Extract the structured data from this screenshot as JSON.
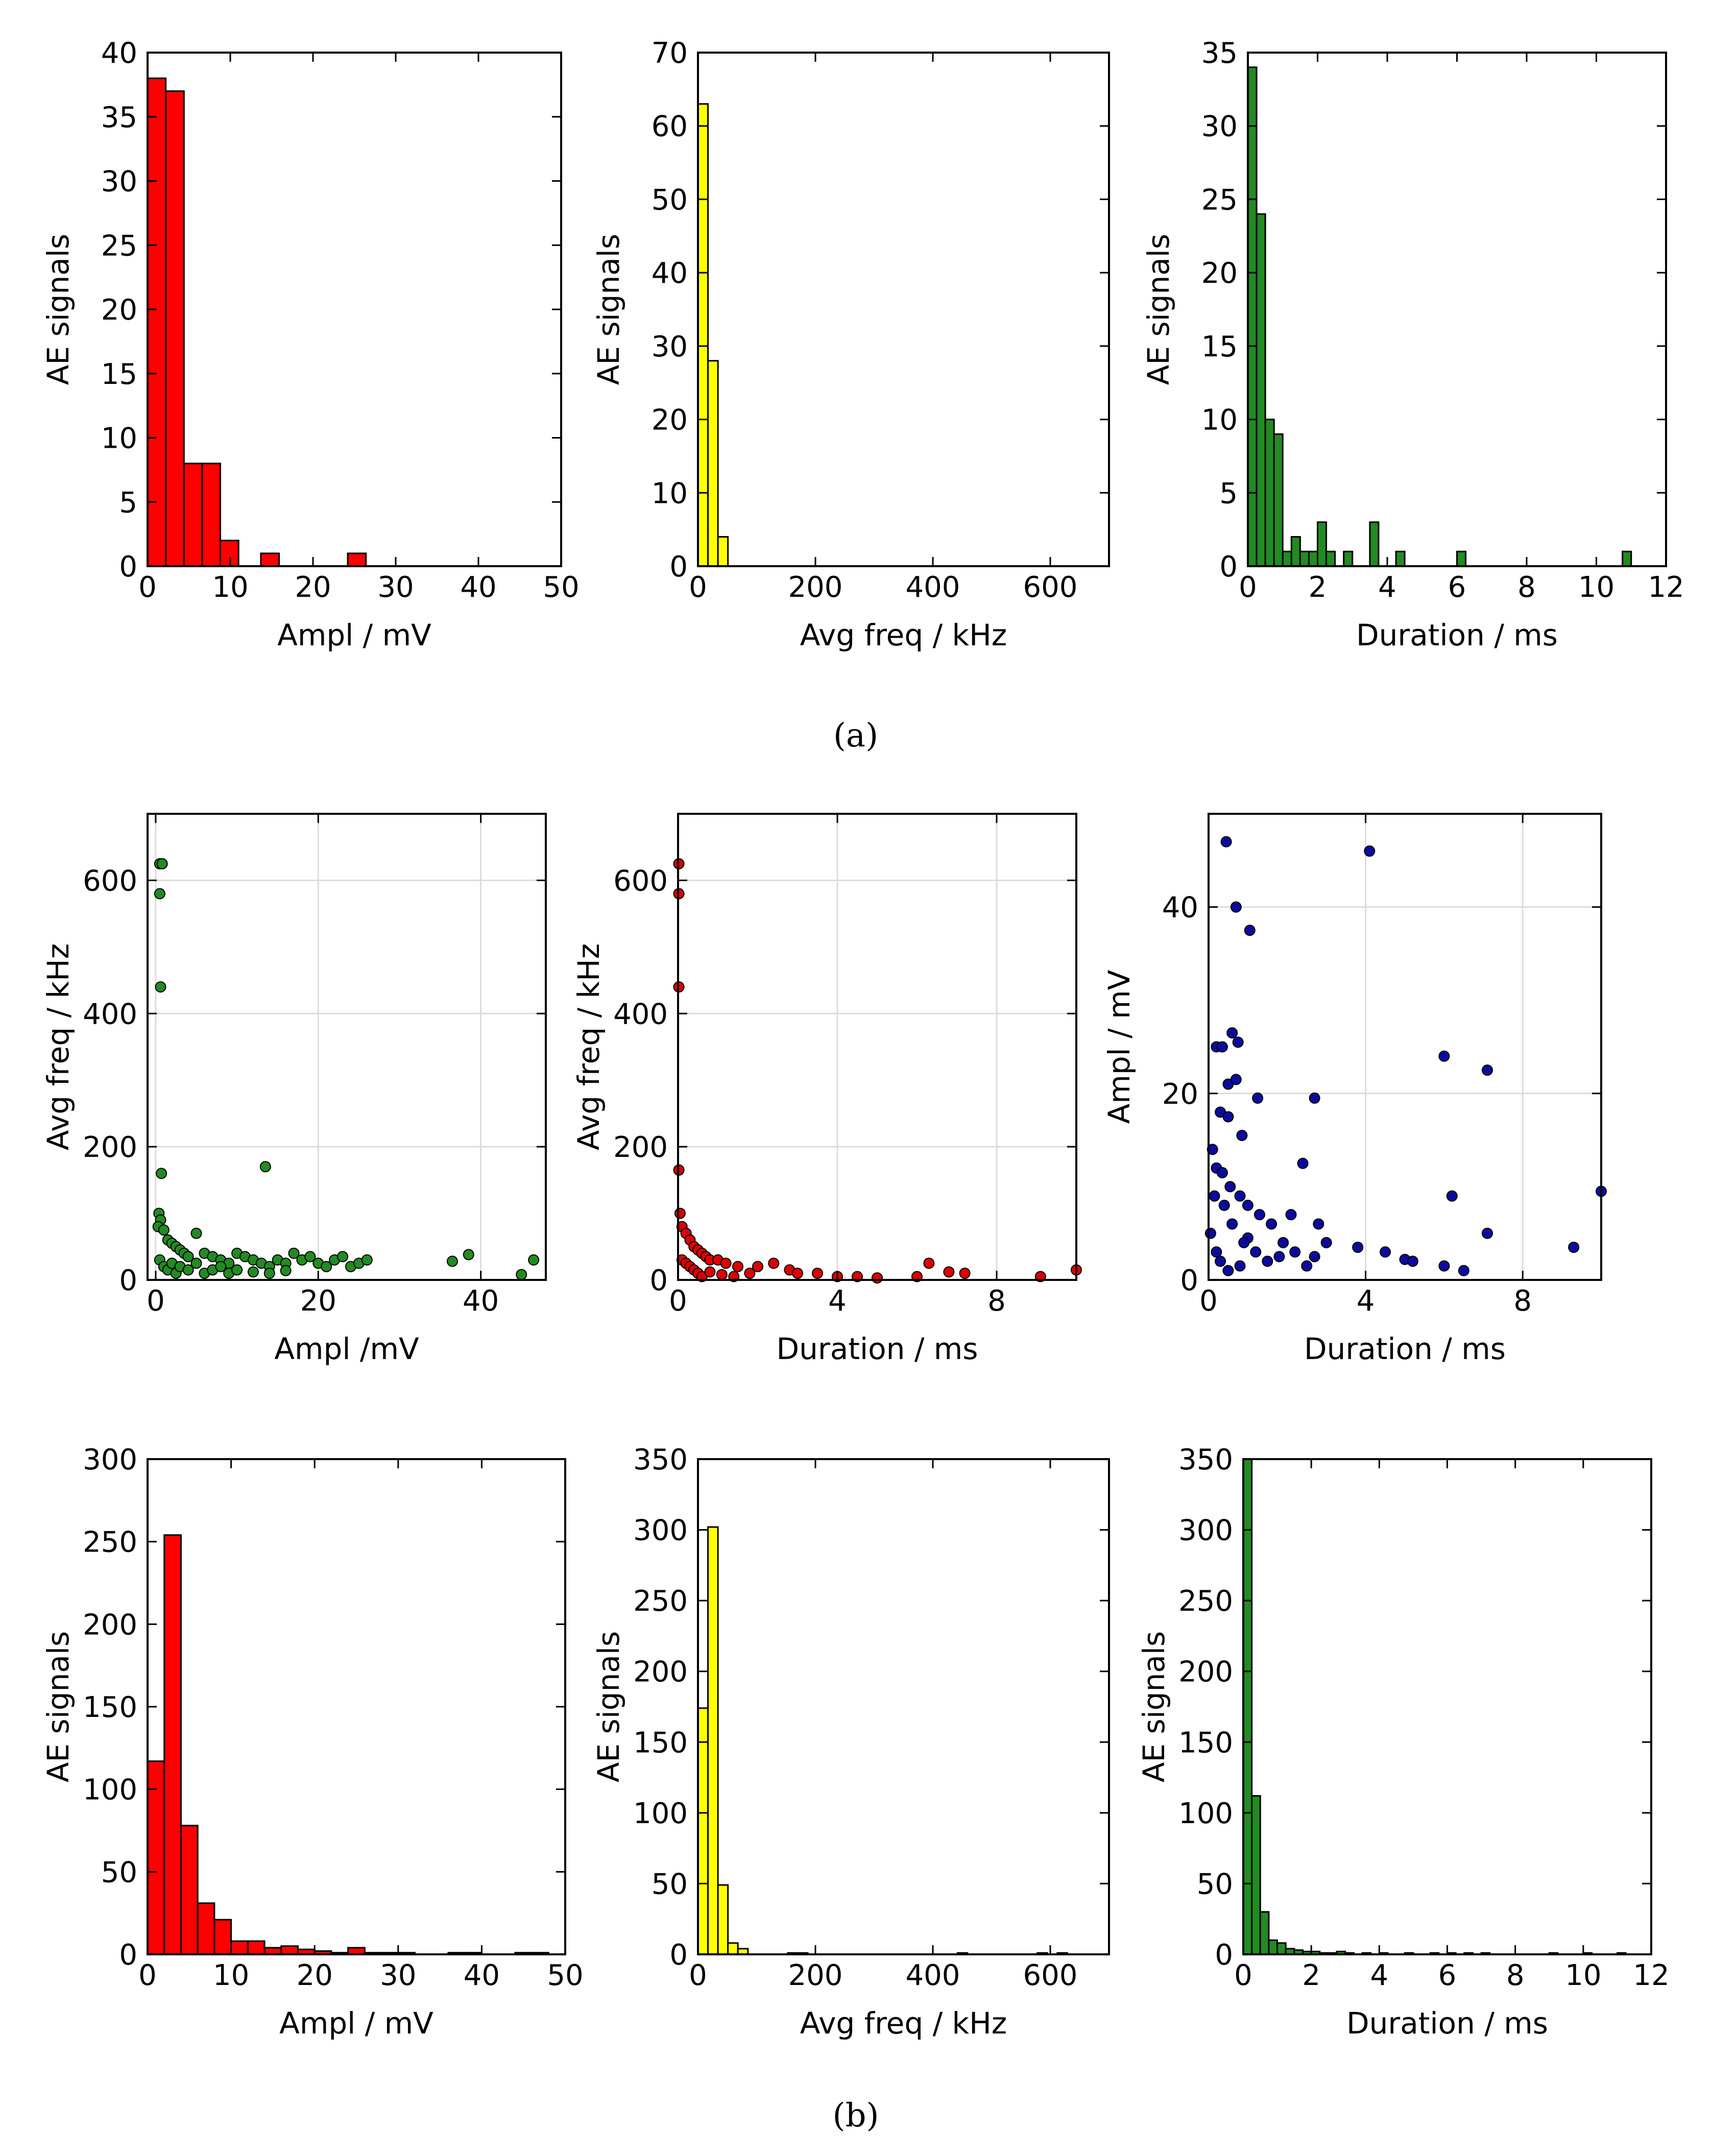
{
  "captions": {
    "a": "(a)",
    "b": "(b)"
  },
  "chart_data": [
    {
      "id": "a1",
      "type": "bar",
      "title": "",
      "xlabel": "Ampl /  mV",
      "ylabel": "AE signals",
      "xlim": [
        0,
        50
      ],
      "ylim": [
        0,
        40
      ],
      "xticks": [
        0,
        10,
        20,
        30,
        40,
        50
      ],
      "yticks": [
        0,
        5,
        10,
        15,
        20,
        25,
        30,
        35,
        40
      ],
      "color": "#ff0000",
      "bin_width": 2.2,
      "bins": [
        {
          "x": 0,
          "value": 38
        },
        {
          "x": 2.2,
          "value": 37
        },
        {
          "x": 4.4,
          "value": 8
        },
        {
          "x": 6.6,
          "value": 8
        },
        {
          "x": 8.8,
          "value": 2
        },
        {
          "x": 13.7,
          "value": 1
        },
        {
          "x": 24.2,
          "value": 1
        }
      ]
    },
    {
      "id": "a2",
      "type": "bar",
      "title": "",
      "xlabel": "Avg freq / kHz",
      "ylabel": "AE signals",
      "xlim": [
        0,
        700
      ],
      "ylim": [
        0,
        70
      ],
      "xticks": [
        0,
        200,
        400,
        600
      ],
      "yticks": [
        0,
        10,
        20,
        30,
        40,
        50,
        60,
        70
      ],
      "color": "#ffff00",
      "bin_width": 17,
      "bins": [
        {
          "x": 0,
          "value": 63
        },
        {
          "x": 17,
          "value": 28
        },
        {
          "x": 34,
          "value": 4
        }
      ]
    },
    {
      "id": "a3",
      "type": "bar",
      "title": "",
      "xlabel": "Duration / ms",
      "ylabel": "AE signals",
      "xlim": [
        0,
        12
      ],
      "ylim": [
        0,
        35
      ],
      "xticks": [
        0,
        2,
        4,
        6,
        8,
        10,
        12
      ],
      "yticks": [
        0,
        5,
        10,
        15,
        20,
        25,
        30,
        35
      ],
      "color": "#228b22",
      "bin_width": 0.25,
      "bins": [
        {
          "x": 0,
          "value": 34
        },
        {
          "x": 0.25,
          "value": 24
        },
        {
          "x": 0.5,
          "value": 10
        },
        {
          "x": 0.75,
          "value": 9
        },
        {
          "x": 1.0,
          "value": 1
        },
        {
          "x": 1.25,
          "value": 2
        },
        {
          "x": 1.5,
          "value": 1
        },
        {
          "x": 1.75,
          "value": 1
        },
        {
          "x": 2.0,
          "value": 3
        },
        {
          "x": 2.25,
          "value": 1
        },
        {
          "x": 2.75,
          "value": 1
        },
        {
          "x": 3.5,
          "value": 3
        },
        {
          "x": 4.25,
          "value": 1
        },
        {
          "x": 6.0,
          "value": 1
        },
        {
          "x": 10.75,
          "value": 1
        }
      ]
    },
    {
      "id": "b1",
      "type": "scatter",
      "title": "",
      "xlabel": "Ampl /mV",
      "ylabel": "Avg freq / kHz",
      "xlim": [
        -1,
        48
      ],
      "ylim": [
        0,
        700
      ],
      "xticks": [
        0,
        20,
        40
      ],
      "yticks": [
        0,
        200,
        400,
        600
      ],
      "color": "#228b22",
      "grid": true,
      "points": [
        [
          0.5,
          625
        ],
        [
          0.8,
          625
        ],
        [
          0.5,
          580
        ],
        [
          0.6,
          440
        ],
        [
          0.7,
          160
        ],
        [
          13.5,
          170
        ],
        [
          0.4,
          100
        ],
        [
          0.6,
          90
        ],
        [
          0.3,
          80
        ],
        [
          1,
          75
        ],
        [
          1.5,
          60
        ],
        [
          2,
          55
        ],
        [
          2.5,
          50
        ],
        [
          3,
          45
        ],
        [
          3.5,
          40
        ],
        [
          4,
          35
        ],
        [
          5,
          70
        ],
        [
          6,
          40
        ],
        [
          7,
          35
        ],
        [
          8,
          30
        ],
        [
          9,
          25
        ],
        [
          10,
          40
        ],
        [
          11,
          35
        ],
        [
          12,
          30
        ],
        [
          13,
          25
        ],
        [
          14,
          20
        ],
        [
          15,
          30
        ],
        [
          16,
          25
        ],
        [
          17,
          40
        ],
        [
          18,
          30
        ],
        [
          19,
          35
        ],
        [
          20,
          25
        ],
        [
          21,
          20
        ],
        [
          22,
          30
        ],
        [
          23,
          35
        ],
        [
          24,
          20
        ],
        [
          25,
          25
        ],
        [
          26,
          30
        ],
        [
          36.5,
          28
        ],
        [
          38.5,
          38
        ],
        [
          45,
          8
        ],
        [
          46.5,
          30
        ],
        [
          0.5,
          30
        ],
        [
          1,
          20
        ],
        [
          1.5,
          15
        ],
        [
          2,
          25
        ],
        [
          2.5,
          10
        ],
        [
          3,
          20
        ],
        [
          4,
          15
        ],
        [
          5,
          25
        ],
        [
          6,
          10
        ],
        [
          7,
          15
        ],
        [
          8,
          20
        ],
        [
          9,
          10
        ],
        [
          10,
          15
        ],
        [
          12,
          12
        ],
        [
          14,
          10
        ],
        [
          16,
          14
        ]
      ]
    },
    {
      "id": "b2",
      "type": "scatter",
      "title": "",
      "xlabel": "Duration / ms",
      "ylabel": "Avg freq / kHz",
      "xlim": [
        0,
        10
      ],
      "ylim": [
        0,
        700
      ],
      "xticks": [
        0,
        4,
        8
      ],
      "yticks": [
        0,
        200,
        400,
        600
      ],
      "color": "#dd0000",
      "grid": true,
      "points": [
        [
          0.02,
          625
        ],
        [
          0.02,
          580
        ],
        [
          0.02,
          440
        ],
        [
          0.02,
          165
        ],
        [
          0.05,
          100
        ],
        [
          0.1,
          80
        ],
        [
          0.2,
          70
        ],
        [
          0.3,
          60
        ],
        [
          0.4,
          50
        ],
        [
          0.5,
          45
        ],
        [
          0.6,
          40
        ],
        [
          0.7,
          35
        ],
        [
          0.8,
          30
        ],
        [
          1.0,
          30
        ],
        [
          1.2,
          25
        ],
        [
          1.5,
          20
        ],
        [
          2.0,
          20
        ],
        [
          2.4,
          25
        ],
        [
          2.8,
          15
        ],
        [
          3.0,
          10
        ],
        [
          3.5,
          10
        ],
        [
          4.0,
          5
        ],
        [
          4.5,
          5
        ],
        [
          5.0,
          3
        ],
        [
          6.0,
          5
        ],
        [
          6.3,
          25
        ],
        [
          6.8,
          12
        ],
        [
          7.2,
          10
        ],
        [
          9.1,
          5
        ],
        [
          10.0,
          15
        ],
        [
          0.1,
          30
        ],
        [
          0.2,
          25
        ],
        [
          0.3,
          20
        ],
        [
          0.4,
          15
        ],
        [
          0.5,
          10
        ],
        [
          0.6,
          5
        ],
        [
          0.8,
          12
        ],
        [
          1.1,
          8
        ],
        [
          1.4,
          5
        ],
        [
          1.8,
          10
        ]
      ]
    },
    {
      "id": "b3",
      "type": "scatter",
      "title": "",
      "xlabel": "Duration / ms",
      "ylabel": "Ampl /  mV",
      "xlim": [
        0,
        10
      ],
      "ylim": [
        0,
        50
      ],
      "xticks": [
        0,
        4,
        8
      ],
      "yticks": [
        0,
        20,
        40
      ],
      "color": "#0a0aa0",
      "grid": true,
      "points": [
        [
          0.45,
          47
        ],
        [
          4.1,
          46
        ],
        [
          0.7,
          40
        ],
        [
          1.05,
          37.5
        ],
        [
          0.6,
          26.5
        ],
        [
          0.75,
          25.5
        ],
        [
          0.2,
          25
        ],
        [
          0.35,
          25
        ],
        [
          0.5,
          21
        ],
        [
          0.7,
          21.5
        ],
        [
          6.0,
          24
        ],
        [
          7.1,
          22.5
        ],
        [
          1.25,
          19.5
        ],
        [
          2.7,
          19.5
        ],
        [
          0.3,
          18
        ],
        [
          0.5,
          17.5
        ],
        [
          0.85,
          15.5
        ],
        [
          2.4,
          12.5
        ],
        [
          0.1,
          14
        ],
        [
          0.2,
          12
        ],
        [
          0.35,
          11.5
        ],
        [
          0.55,
          10
        ],
        [
          0.8,
          9
        ],
        [
          1.0,
          8
        ],
        [
          1.3,
          7
        ],
        [
          1.6,
          6
        ],
        [
          2.1,
          7
        ],
        [
          2.8,
          6
        ],
        [
          6.2,
          9
        ],
        [
          7.1,
          5
        ],
        [
          3.8,
          3.5
        ],
        [
          4.5,
          3
        ],
        [
          5.0,
          2.2
        ],
        [
          5.2,
          2
        ],
        [
          6.0,
          1.5
        ],
        [
          6.5,
          1
        ],
        [
          9.3,
          3.5
        ],
        [
          10,
          9.5
        ],
        [
          1.0,
          4.5
        ],
        [
          1.9,
          4
        ],
        [
          2.2,
          3
        ],
        [
          2.7,
          2.5
        ],
        [
          3.0,
          4
        ],
        [
          0.15,
          9
        ],
        [
          0.4,
          8
        ],
        [
          0.6,
          6
        ],
        [
          0.9,
          4
        ],
        [
          1.2,
          3
        ],
        [
          1.5,
          2
        ],
        [
          0.05,
          5
        ],
        [
          0.2,
          3
        ],
        [
          0.3,
          2
        ],
        [
          0.5,
          1
        ],
        [
          0.8,
          1.5
        ],
        [
          1.8,
          2.5
        ],
        [
          2.5,
          1.5
        ]
      ]
    },
    {
      "id": "b4",
      "type": "bar",
      "title": "",
      "xlabel": "Ampl /  mV",
      "ylabel": "AE signals",
      "xlim": [
        0,
        50
      ],
      "ylim": [
        0,
        300
      ],
      "xticks": [
        0,
        10,
        20,
        30,
        40,
        50
      ],
      "yticks": [
        0,
        50,
        100,
        150,
        200,
        250,
        300
      ],
      "color": "#ff0000",
      "bin_width": 2.0,
      "bins": [
        {
          "x": 0,
          "value": 117
        },
        {
          "x": 2,
          "value": 254
        },
        {
          "x": 4,
          "value": 78
        },
        {
          "x": 6,
          "value": 31
        },
        {
          "x": 8,
          "value": 21
        },
        {
          "x": 10,
          "value": 8
        },
        {
          "x": 12,
          "value": 8
        },
        {
          "x": 14,
          "value": 4
        },
        {
          "x": 16,
          "value": 5
        },
        {
          "x": 18,
          "value": 3
        },
        {
          "x": 20,
          "value": 2
        },
        {
          "x": 22,
          "value": 1
        },
        {
          "x": 24,
          "value": 4
        },
        {
          "x": 26,
          "value": 1
        },
        {
          "x": 28,
          "value": 1
        },
        {
          "x": 30,
          "value": 1
        },
        {
          "x": 36,
          "value": 1
        },
        {
          "x": 38,
          "value": 1
        },
        {
          "x": 44,
          "value": 1
        },
        {
          "x": 46,
          "value": 1
        }
      ]
    },
    {
      "id": "b5",
      "type": "bar",
      "title": "",
      "xlabel": "Avg freq / kHz",
      "ylabel": "AE signals",
      "xlim": [
        0,
        700
      ],
      "ylim": [
        0,
        350
      ],
      "xticks": [
        0,
        200,
        400,
        600
      ],
      "yticks": [
        0,
        50,
        100,
        150,
        200,
        250,
        300,
        350
      ],
      "color": "#ffff00",
      "bin_width": 17,
      "bins": [
        {
          "x": 0,
          "value": 174
        },
        {
          "x": 17,
          "value": 302
        },
        {
          "x": 34,
          "value": 49
        },
        {
          "x": 51,
          "value": 8
        },
        {
          "x": 68,
          "value": 4
        },
        {
          "x": 153,
          "value": 1
        },
        {
          "x": 170,
          "value": 1
        },
        {
          "x": 442,
          "value": 1
        },
        {
          "x": 578,
          "value": 1
        },
        {
          "x": 612,
          "value": 1
        }
      ]
    },
    {
      "id": "b6",
      "type": "bar",
      "title": "",
      "xlabel": "Duration / ms",
      "ylabel": "AE signals",
      "xlim": [
        0,
        12
      ],
      "ylim": [
        0,
        350
      ],
      "xticks": [
        0,
        2,
        4,
        6,
        8,
        10,
        12
      ],
      "yticks": [
        0,
        50,
        100,
        150,
        200,
        250,
        300,
        350
      ],
      "color": "#228b22",
      "bin_width": 0.25,
      "bins": [
        {
          "x": 0,
          "value": 350
        },
        {
          "x": 0.25,
          "value": 112
        },
        {
          "x": 0.5,
          "value": 30
        },
        {
          "x": 0.75,
          "value": 10
        },
        {
          "x": 1.0,
          "value": 8
        },
        {
          "x": 1.25,
          "value": 4
        },
        {
          "x": 1.5,
          "value": 3
        },
        {
          "x": 1.75,
          "value": 2
        },
        {
          "x": 2.0,
          "value": 2
        },
        {
          "x": 2.25,
          "value": 1
        },
        {
          "x": 2.5,
          "value": 1
        },
        {
          "x": 2.75,
          "value": 2
        },
        {
          "x": 3.0,
          "value": 1
        },
        {
          "x": 3.5,
          "value": 1
        },
        {
          "x": 4.0,
          "value": 1
        },
        {
          "x": 4.75,
          "value": 1
        },
        {
          "x": 5.5,
          "value": 1
        },
        {
          "x": 6.0,
          "value": 1
        },
        {
          "x": 6.5,
          "value": 1
        },
        {
          "x": 7.0,
          "value": 1
        },
        {
          "x": 9.0,
          "value": 1
        },
        {
          "x": 10.0,
          "value": 1
        },
        {
          "x": 11.0,
          "value": 1
        }
      ]
    }
  ]
}
